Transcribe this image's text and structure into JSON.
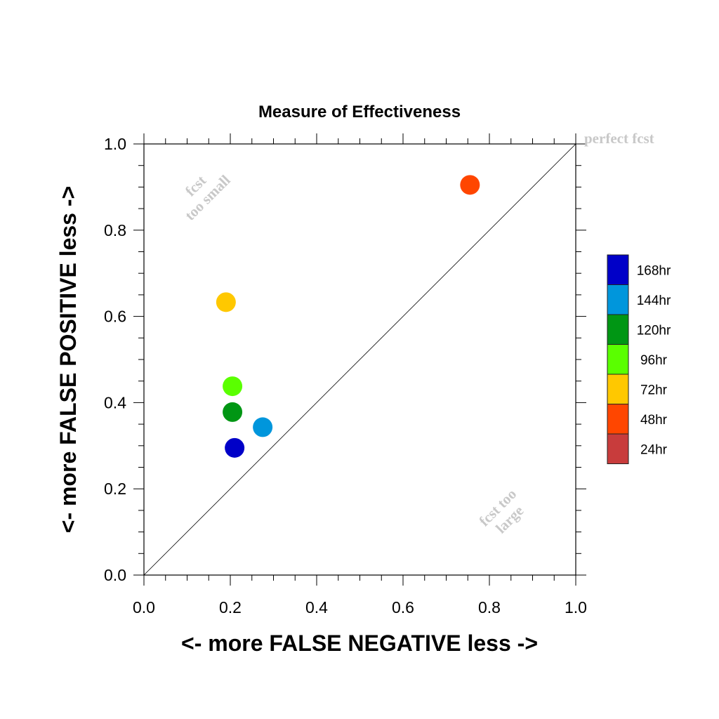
{
  "chart_data": {
    "type": "scatter",
    "title": "Measure of Effectiveness",
    "xlabel": "<- more   FALSE NEGATIVE   less ->",
    "ylabel": "<- more   FALSE POSITIVE   less ->",
    "xlim": [
      0,
      1
    ],
    "ylim": [
      0,
      1
    ],
    "x_ticks": [
      "0.0",
      "0.2",
      "0.4",
      "0.6",
      "0.8",
      "1.0"
    ],
    "y_ticks": [
      "0.0",
      "0.2",
      "0.4",
      "0.6",
      "0.8",
      "1.0"
    ],
    "grid": false,
    "diagonal_reference_line": true,
    "annotations": {
      "perfect": "perfect fcst",
      "too_small_1": "fcst",
      "too_small_2": "too small",
      "too_large_1": "fcst too",
      "too_large_2": "large"
    },
    "legend_position": "right",
    "legend": [
      {
        "label": "168hr",
        "color": "#0000c8"
      },
      {
        "label": "144hr",
        "color": "#0096dc"
      },
      {
        "label": "120hr",
        "color": "#009614"
      },
      {
        "label": "96hr",
        "color": "#5aff00"
      },
      {
        "label": "72hr",
        "color": "#ffc800"
      },
      {
        "label": "48hr",
        "color": "#ff4600"
      },
      {
        "label": "24hr",
        "color": "#c83c3c"
      }
    ],
    "points": [
      {
        "series": "168hr",
        "x": 0.21,
        "y": 0.295,
        "color": "#0000c8"
      },
      {
        "series": "144hr",
        "x": 0.275,
        "y": 0.343,
        "color": "#0096dc"
      },
      {
        "series": "120hr",
        "x": 0.205,
        "y": 0.378,
        "color": "#009614"
      },
      {
        "series": "96hr",
        "x": 0.205,
        "y": 0.438,
        "color": "#5aff00"
      },
      {
        "series": "72hr",
        "x": 0.19,
        "y": 0.633,
        "color": "#ffc800"
      },
      {
        "series": "48hr",
        "x": 0.755,
        "y": 0.905,
        "color": "#ff4600"
      }
    ]
  }
}
